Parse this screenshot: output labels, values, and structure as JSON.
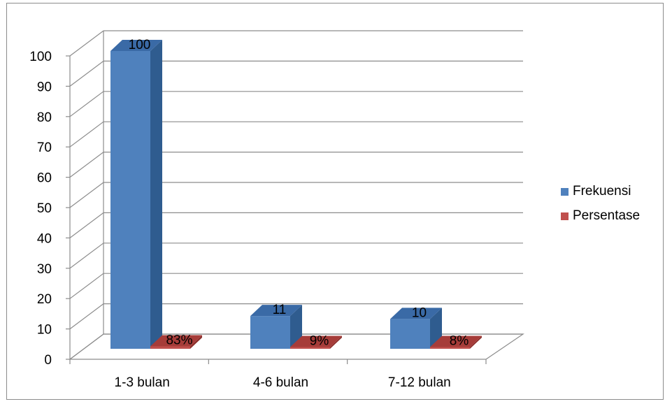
{
  "chart_data": {
    "type": "bar",
    "categories": [
      "1-3 bulan",
      "4-6 bulan",
      "7-12 bulan"
    ],
    "series": [
      {
        "name": "Frekuensi",
        "values": [
          100,
          11,
          10
        ],
        "labels": [
          "100",
          "11",
          "10"
        ],
        "color": "#4F81BD",
        "color_dark": "#2F5C8F",
        "color_top": "#3A6AA6"
      },
      {
        "name": "Persentase",
        "values": [
          0.83,
          0.09,
          0.08
        ],
        "labels": [
          "83%",
          "9%",
          "8%"
        ],
        "color": "#C0504D",
        "color_dark": "#8E2E2B",
        "color_top": "#A63C39"
      }
    ],
    "y_ticks": [
      "0",
      "10",
      "20",
      "30",
      "40",
      "50",
      "60",
      "70",
      "80",
      "90",
      "100"
    ],
    "ylim": [
      0,
      100
    ],
    "grid": true,
    "legend_position": "right",
    "style": "3d-clustered-column"
  }
}
